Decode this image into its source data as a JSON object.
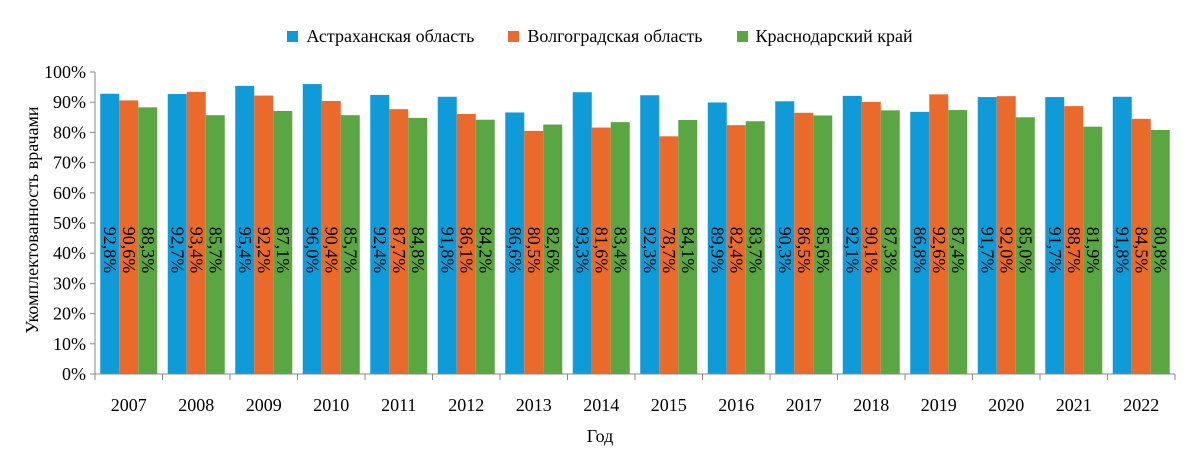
{
  "chart_data": {
    "type": "bar",
    "categories": [
      "2007",
      "2008",
      "2009",
      "2010",
      "2011",
      "2012",
      "2013",
      "2014",
      "2015",
      "2016",
      "2017",
      "2018",
      "2019",
      "2020",
      "2021",
      "2022"
    ],
    "series": [
      {
        "name": "Астраханская область",
        "color": "#0f9bd7",
        "values": [
          92.8,
          92.7,
          95.4,
          96.0,
          92.4,
          91.8,
          86.6,
          93.3,
          92.3,
          89.9,
          90.3,
          92.1,
          86.8,
          91.7,
          91.7,
          91.8
        ],
        "labels": [
          "92,8%",
          "92,7%",
          "95,4%",
          "96,0%",
          "92,4%",
          "91,8%",
          "86,6%",
          "93,3%",
          "92,3%",
          "89,9%",
          "90,3%",
          "92,1%",
          "86,8%",
          "91,7%",
          "91,7%",
          "91,8%"
        ]
      },
      {
        "name": "Волгоградская область",
        "color": "#ea6a2c",
        "values": [
          90.6,
          93.4,
          92.2,
          90.4,
          87.7,
          86.1,
          80.5,
          81.6,
          78.7,
          82.4,
          86.5,
          90.1,
          92.6,
          92.0,
          88.7,
          84.5
        ],
        "labels": [
          "90,6%",
          "93,4%",
          "92,2%",
          "90,4%",
          "87,7%",
          "86,1%",
          "80,5%",
          "81,6%",
          "78,7%",
          "82,4%",
          "86,5%",
          "90,1%",
          "92,6%",
          "92,0%",
          "88,7%",
          "84,5%"
        ]
      },
      {
        "name": "Краснодарский край",
        "color": "#5aa642",
        "values": [
          88.3,
          85.7,
          87.1,
          85.7,
          84.8,
          84.2,
          82.6,
          83.4,
          84.1,
          83.7,
          85.6,
          87.3,
          87.4,
          85.0,
          81.9,
          80.8
        ],
        "labels": [
          "88,3%",
          "85,7%",
          "87,1%",
          "85,7%",
          "84,8%",
          "84,2%",
          "82,6%",
          "83,4%",
          "84,1%",
          "83,7%",
          "85,6%",
          "87,3%",
          "87,4%",
          "85,0%",
          "81,9%",
          "80,8%"
        ]
      }
    ],
    "yticks": [
      "0%",
      "10%",
      "20%",
      "30%",
      "40%",
      "50%",
      "60%",
      "70%",
      "80%",
      "90%",
      "100%"
    ],
    "ylim": [
      0,
      100
    ],
    "xlabel": "Год",
    "ylabel": "Укомплектованность врачами",
    "legend_position": "top-center",
    "grid": false
  }
}
